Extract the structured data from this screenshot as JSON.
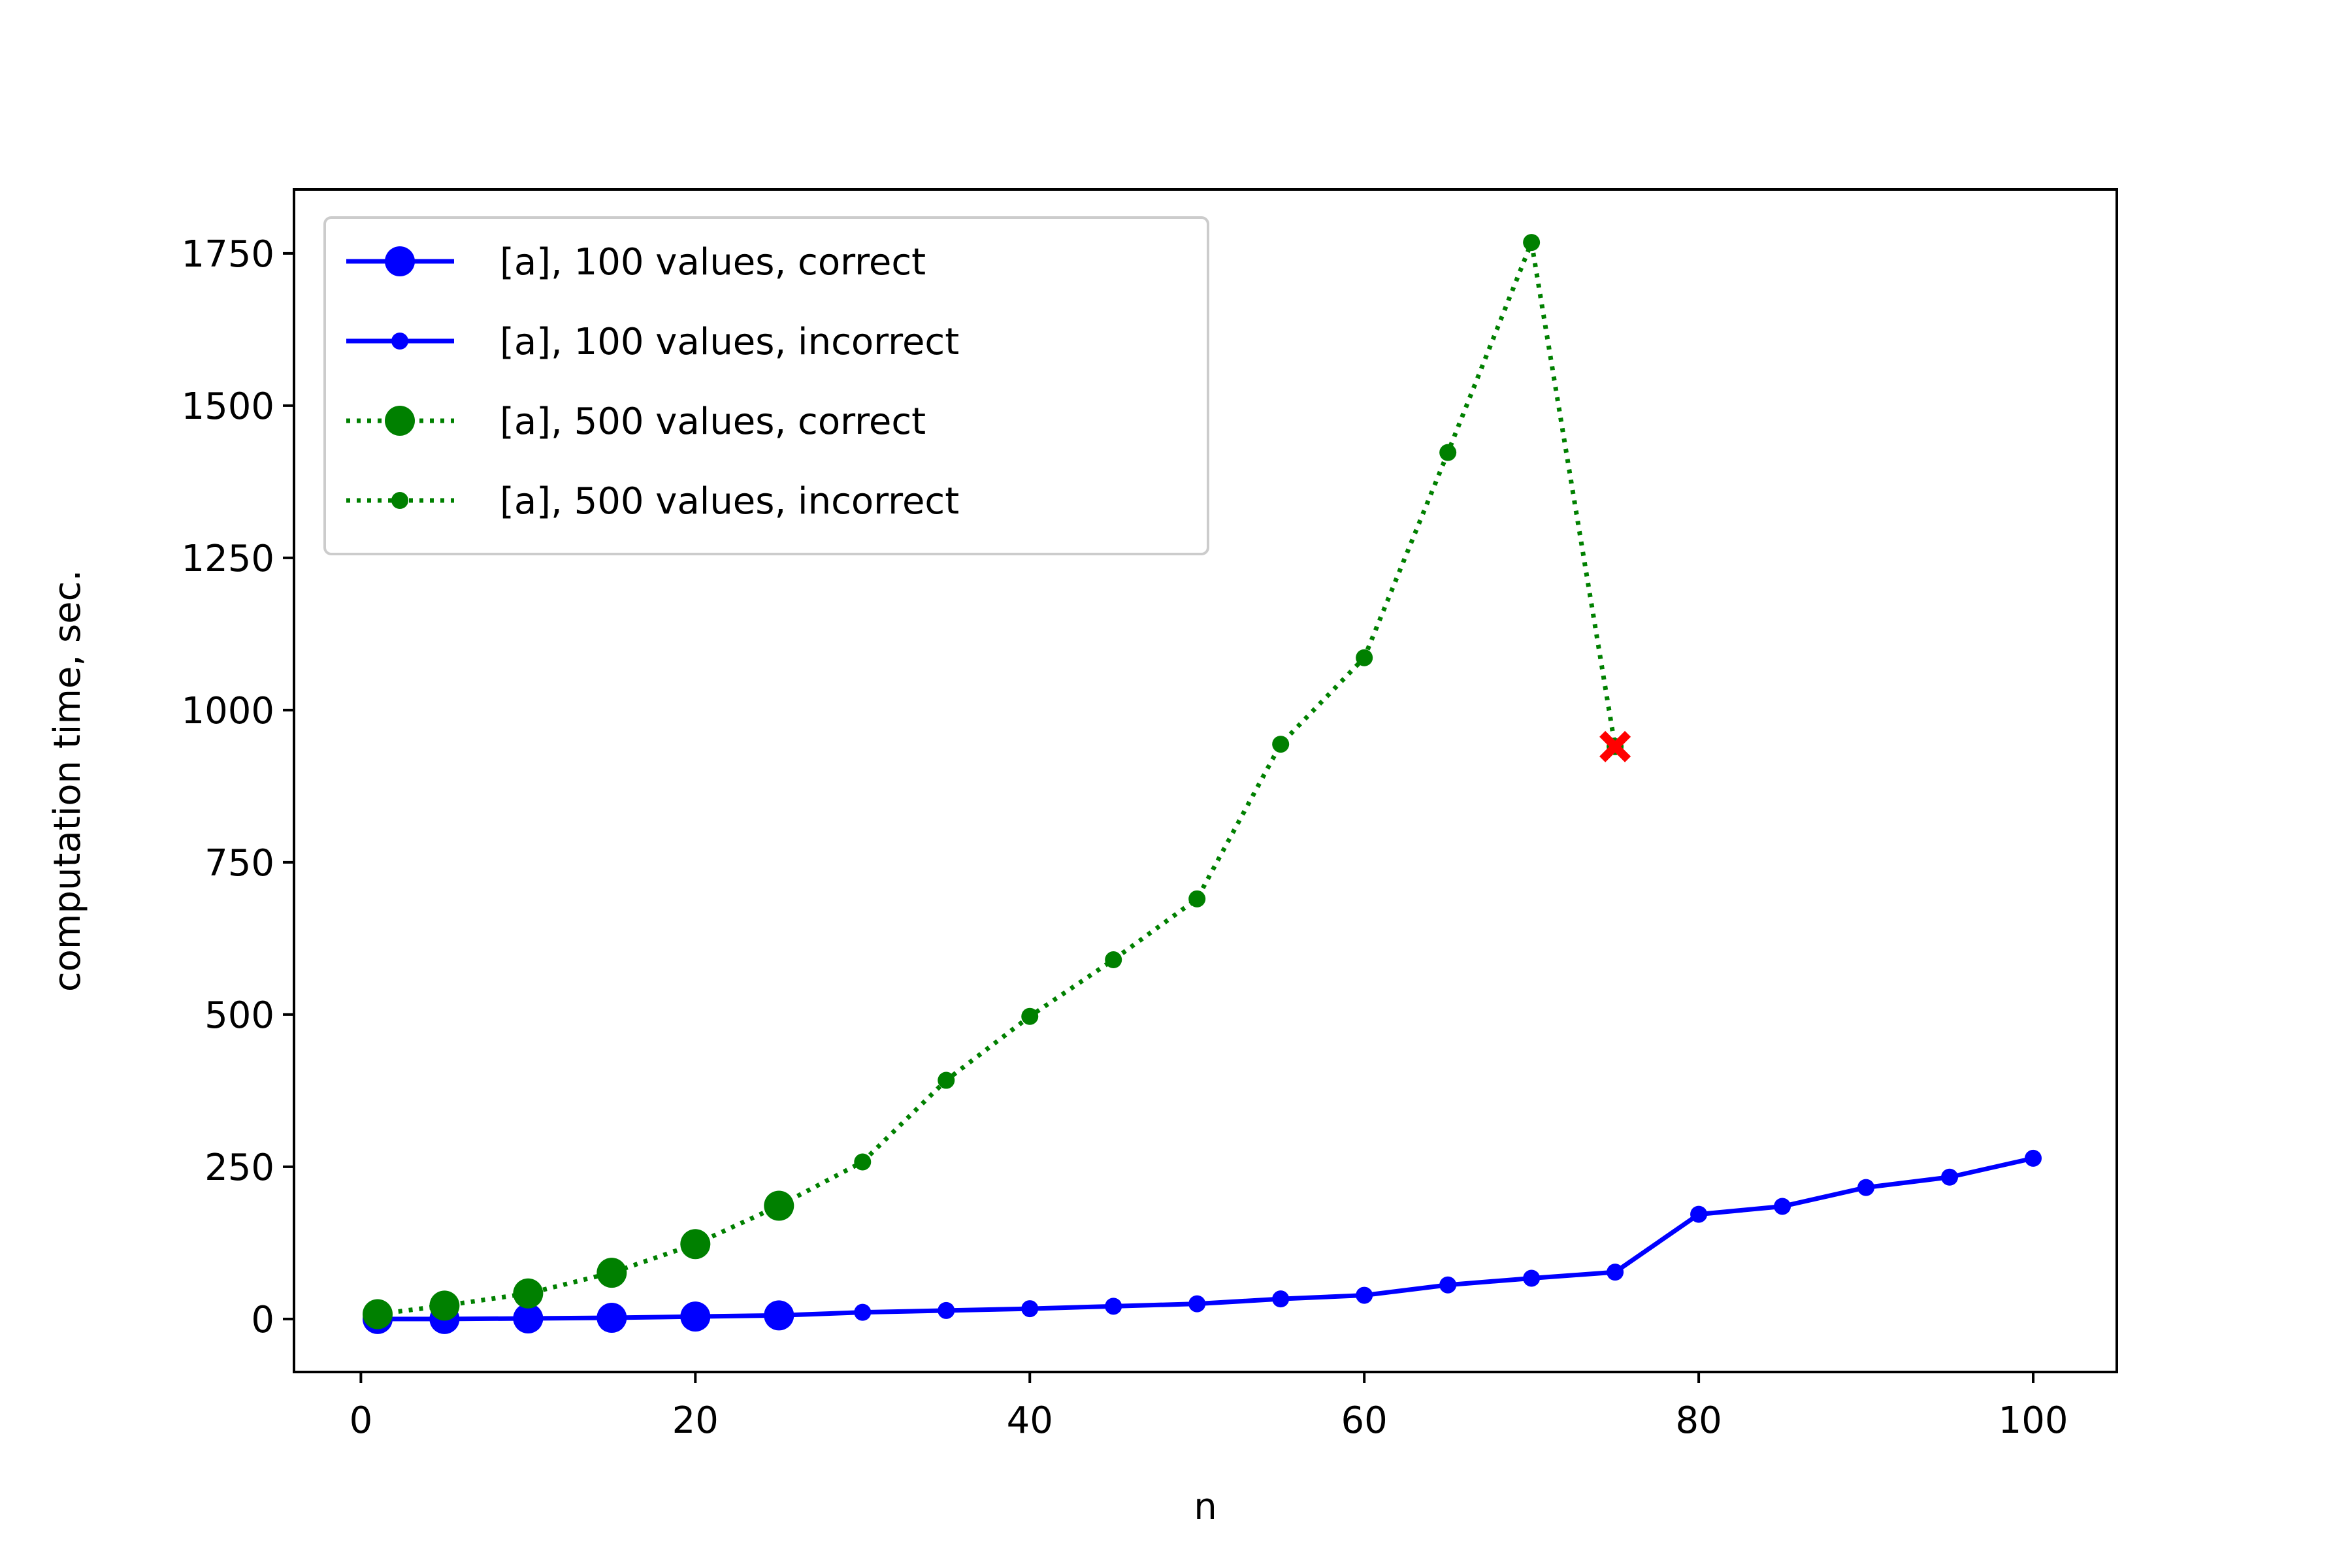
{
  "chart_data": {
    "type": "line",
    "xlabel": "n",
    "ylabel": "computation time, sec.",
    "xlim": [
      -4,
      105
    ],
    "ylim": [
      -87,
      1855
    ],
    "x_ticks": [
      0,
      20,
      40,
      60,
      80,
      100
    ],
    "x_tick_labels": [
      "0",
      "20",
      "40",
      "60",
      "80",
      "100"
    ],
    "y_ticks": [
      0,
      250,
      500,
      750,
      1000,
      1250,
      1500,
      1750
    ],
    "y_tick_labels": [
      "0",
      "250",
      "500",
      "750",
      "1000",
      "1250",
      "1500",
      "1750"
    ],
    "grid": false,
    "legend_position": "upper left",
    "series": [
      {
        "name": "[a], 100 values, correct",
        "color": "#0000ff",
        "line": "solid",
        "marker": "large-circle",
        "x": [
          1,
          5,
          10,
          15,
          20,
          25
        ],
        "y": [
          0,
          0,
          1,
          2,
          4,
          6
        ]
      },
      {
        "name": "[a], 100 values, incorrect",
        "color": "#0000ff",
        "line": "solid",
        "marker": "small-circle",
        "x": [
          25,
          30,
          35,
          40,
          45,
          50,
          55,
          60,
          65,
          70,
          75,
          80,
          85,
          90,
          95,
          100
        ],
        "y": [
          6,
          11,
          14,
          17,
          21,
          25,
          33,
          39,
          56,
          67,
          77,
          172,
          185,
          216,
          233,
          264
        ]
      },
      {
        "name": "[a], 500 values, correct",
        "color": "#008000",
        "line": "dotted",
        "marker": "large-circle",
        "x": [
          1,
          5,
          10,
          15,
          20,
          25
        ],
        "y": [
          8,
          22,
          42,
          76,
          123,
          186
        ]
      },
      {
        "name": "[a], 500 values, incorrect",
        "color": "#008000",
        "line": "dotted",
        "marker": "small-circle",
        "x": [
          25,
          30,
          35,
          40,
          45,
          50,
          55,
          60,
          65,
          70,
          75
        ],
        "y": [
          186,
          258,
          392,
          497,
          590,
          690,
          944,
          1086,
          1423,
          1768,
          940
        ]
      }
    ],
    "failure_marker": {
      "x": 75,
      "y": 940,
      "color": "#ff0000",
      "marker": "x-filled"
    }
  }
}
